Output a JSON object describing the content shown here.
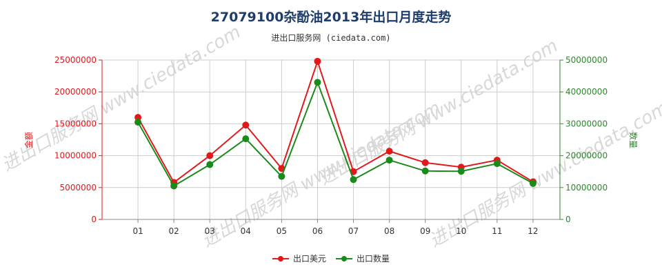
{
  "title": "27079100杂酚油2013年出口月度走势",
  "subtitle": "进出口服务网 (ciedata.com)",
  "watermark": "进出口服务网 www.ciedata.com",
  "colors": {
    "value": "#e0191b",
    "quantity": "#1a8a1a",
    "right_axis": "#2a8a2a",
    "grid": "#cccccc",
    "title": "#1f3d6b"
  },
  "chart_data": {
    "type": "line",
    "categories": [
      "01",
      "02",
      "03",
      "04",
      "05",
      "06",
      "07",
      "08",
      "09",
      "10",
      "11",
      "12"
    ],
    "ylabel_left": "金额",
    "ylabel_right": "数量",
    "ylim_left": [
      0,
      25000000
    ],
    "ylim_right": [
      0,
      50000000
    ],
    "yticks_left": [
      "0",
      "5000000",
      "10000000",
      "15000000",
      "20000000",
      "25000000"
    ],
    "yticks_right": [
      "0",
      "10000000",
      "20000000",
      "30000000",
      "40000000",
      "50000000"
    ],
    "grid": true,
    "legend_position": "bottom",
    "series": [
      {
        "name": "出口美元",
        "axis": "left",
        "values": [
          16000000,
          5800000,
          10000000,
          14800000,
          8000000,
          24800000,
          7500000,
          10700000,
          8900000,
          8200000,
          9300000,
          5900000
        ]
      },
      {
        "name": "出口数量",
        "axis": "right",
        "values": [
          30500000,
          10500000,
          17200000,
          25300000,
          13500000,
          43000000,
          12500000,
          18600000,
          15200000,
          15100000,
          17500000,
          11300000
        ]
      }
    ]
  }
}
